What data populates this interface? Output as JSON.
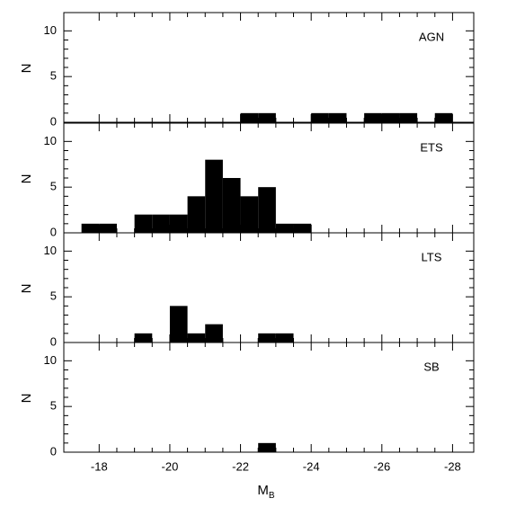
{
  "chart_data": [
    {
      "type": "histogram",
      "annotation": "AGN",
      "ylabel": "N",
      "color": "#000000",
      "bins": [
        -17.5,
        -18,
        -18.5,
        -19,
        -19.5,
        -20,
        -20.5,
        -21,
        -21.5,
        -22,
        -22.5,
        -23,
        -23.5,
        -24,
        -24.5,
        -25,
        -25.5,
        -26,
        -26.5,
        -27,
        -27.5,
        -28
      ],
      "values": [
        0,
        0,
        0,
        0,
        0,
        0,
        0,
        0,
        0,
        1,
        1,
        0,
        0,
        1,
        1,
        0,
        1,
        1,
        1,
        0,
        1
      ],
      "ylim": [
        0,
        12
      ],
      "yticks": [
        0,
        5,
        10
      ]
    },
    {
      "type": "histogram",
      "annotation": "ETS",
      "ylabel": "N",
      "color": "#000000",
      "bins": [
        -17.5,
        -18,
        -18.5,
        -19,
        -19.5,
        -20,
        -20.5,
        -21,
        -21.5,
        -22,
        -22.5,
        -23,
        -23.5,
        -24,
        -24.5,
        -25,
        -25.5,
        -26,
        -26.5,
        -27,
        -27.5,
        -28
      ],
      "values": [
        1,
        1,
        0,
        2,
        2,
        2,
        4,
        8,
        6,
        4,
        5,
        1,
        1,
        0,
        0,
        0,
        0,
        0,
        0,
        0,
        0
      ],
      "ylim": [
        0,
        12
      ],
      "yticks": [
        0,
        5,
        10
      ]
    },
    {
      "type": "histogram",
      "annotation": "LTS",
      "ylabel": "N",
      "color": "#000000",
      "bins": [
        -17.5,
        -18,
        -18.5,
        -19,
        -19.5,
        -20,
        -20.5,
        -21,
        -21.5,
        -22,
        -22.5,
        -23,
        -23.5,
        -24,
        -24.5,
        -25,
        -25.5,
        -26,
        -26.5,
        -27,
        -27.5,
        -28
      ],
      "values": [
        0,
        0,
        0,
        1,
        0,
        4,
        1,
        2,
        0,
        0,
        1,
        1,
        0,
        0,
        0,
        0,
        0,
        0,
        0,
        0,
        0
      ],
      "ylim": [
        0,
        12
      ],
      "yticks": [
        0,
        5,
        10
      ]
    },
    {
      "type": "histogram",
      "annotation": "SB",
      "ylabel": "N",
      "color": "#000000",
      "bins": [
        -17.5,
        -18,
        -18.5,
        -19,
        -19.5,
        -20,
        -20.5,
        -21,
        -21.5,
        -22,
        -22.5,
        -23,
        -23.5,
        -24,
        -24.5,
        -25,
        -25.5,
        -26,
        -26.5,
        -27,
        -27.5,
        -28
      ],
      "values": [
        0,
        0,
        0,
        0,
        0,
        0,
        0,
        0,
        0,
        0,
        1,
        0,
        0,
        0,
        0,
        0,
        0,
        0,
        0,
        0,
        0
      ],
      "ylim": [
        0,
        12
      ],
      "yticks": [
        0,
        5,
        10
      ],
      "xlabel": {
        "text": "M",
        "sub": "B"
      },
      "xlim": [
        -17,
        -28.6
      ],
      "xticks": [
        -18,
        -20,
        -22,
        -24,
        -26,
        -28
      ]
    }
  ]
}
